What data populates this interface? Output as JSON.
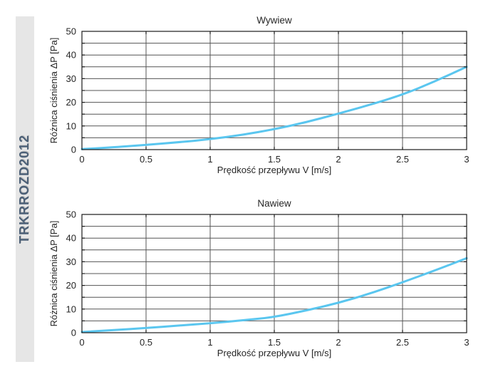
{
  "sidebar": {
    "model_code": "TRKRROZD2012",
    "strip_color": "#e6e6e6",
    "text_color": "#4c6077"
  },
  "chart_data": [
    {
      "type": "line",
      "title": "Wywiew",
      "xlabel": "Prędkość przepływu V [m/s]",
      "ylabel": "Różnica ciśnienia ΔP [Pa]",
      "xlim": [
        0,
        3
      ],
      "ylim": [
        0,
        50
      ],
      "x_ticks": [
        0,
        0.5,
        1,
        1.5,
        2,
        2.5,
        3
      ],
      "x_tick_labels": [
        "0",
        "0.5",
        "1",
        "1.5",
        "2",
        "2.5",
        "3"
      ],
      "y_ticks": [
        0,
        10,
        20,
        30,
        40,
        50
      ],
      "y_tick_labels": [
        "0",
        "10",
        "20",
        "30",
        "40",
        "50"
      ],
      "x_grid_step": 0.5,
      "y_grid_step": 5,
      "grid": true,
      "legend": null,
      "line_color": "#5ac6ef",
      "grid_color": "#555555",
      "axis_color": "#1a1a1a",
      "x": [
        0,
        0.25,
        0.5,
        0.75,
        1,
        1.25,
        1.5,
        1.75,
        2,
        2.25,
        2.5,
        2.75,
        3
      ],
      "y": [
        0.2,
        1.0,
        2.0,
        3.1,
        4.4,
        6.2,
        8.6,
        11.6,
        15.2,
        19.0,
        23.2,
        28.8,
        35.0
      ]
    },
    {
      "type": "line",
      "title": "Nawiew",
      "xlabel": "Prędkość przepływu V [m/s]",
      "ylabel": "Różnica ciśnienia ΔP [Pa]",
      "xlim": [
        0,
        3
      ],
      "ylim": [
        0,
        50
      ],
      "x_ticks": [
        0,
        0.5,
        1,
        1.5,
        2,
        2.5,
        3
      ],
      "x_tick_labels": [
        "0",
        "0.5",
        "1",
        "1.5",
        "2",
        "2.5",
        "3"
      ],
      "y_ticks": [
        0,
        10,
        20,
        30,
        40,
        50
      ],
      "y_tick_labels": [
        "0",
        "10",
        "20",
        "30",
        "40",
        "50"
      ],
      "x_grid_step": 0.5,
      "y_grid_step": 5,
      "grid": true,
      "legend": null,
      "line_color": "#5ac6ef",
      "grid_color": "#555555",
      "axis_color": "#1a1a1a",
      "x": [
        0,
        0.25,
        0.5,
        0.75,
        1,
        1.25,
        1.5,
        1.75,
        2,
        2.25,
        2.5,
        2.75,
        3
      ],
      "y": [
        0.3,
        1.1,
        2.0,
        3.0,
        4.0,
        5.2,
        6.6,
        9.4,
        12.6,
        16.6,
        21.3,
        26.3,
        31.5
      ]
    }
  ]
}
